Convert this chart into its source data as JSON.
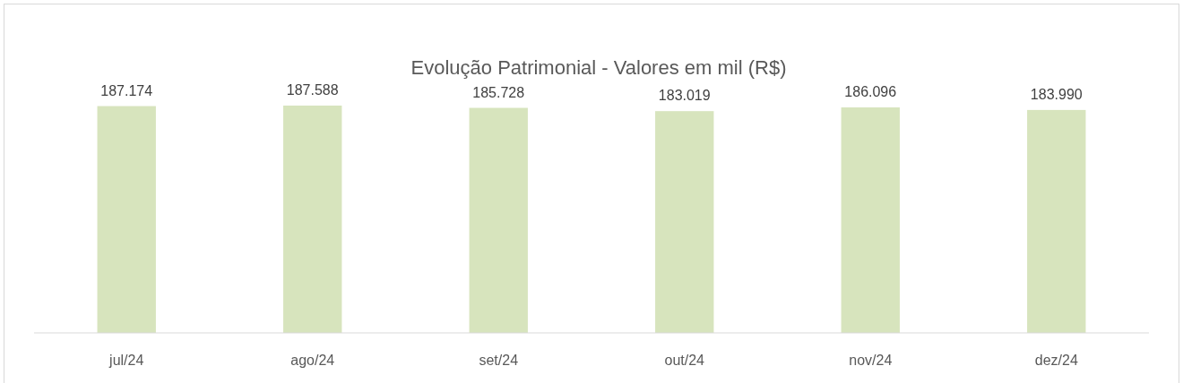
{
  "chart_data": {
    "type": "bar",
    "title": "Evolução Patrimonial - Valores em mil (R$)",
    "categories": [
      "jul/24",
      "ago/24",
      "set/24",
      "out/24",
      "nov/24",
      "dez/24"
    ],
    "values": [
      187174,
      187588,
      185728,
      183019,
      186096,
      183990
    ],
    "value_labels": [
      "187.174",
      "187.588",
      "185.728",
      "183.019",
      "186.096",
      "183.990"
    ],
    "color": "#d7e4bd"
  }
}
